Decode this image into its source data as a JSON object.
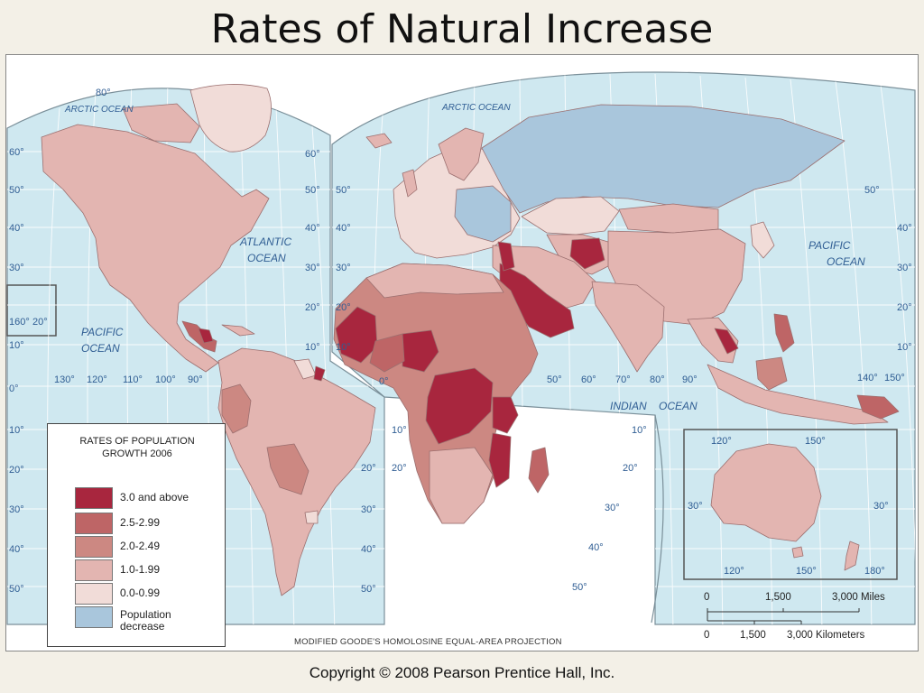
{
  "slide": {
    "title": "Rates of Natural Increase",
    "copyright": "Copyright © 2008 Pearson Prentice Hall, Inc."
  },
  "colors": {
    "ocean": "#cfe8f0",
    "class_3_0_above": "#a8263e",
    "class_2_5_2_99": "#be6566",
    "class_2_0_2_49": "#cc8882",
    "class_1_0_1_99": "#e3b5b1",
    "class_0_0_0_99": "#f1dcd8",
    "population_decrease": "#a9c6dc"
  },
  "oceans": {
    "arctic_left": "ARCTIC OCEAN",
    "arctic_right": "ARCTIC OCEAN",
    "atlantic": "ATLANTIC\nOCEAN",
    "pacific_left": "PACIFIC\nOCEAN",
    "pacific_right": "PACIFIC\nOCEAN",
    "indian": "INDIAN    OCEAN"
  },
  "grid_labels": {
    "lat_left": [
      "80°",
      "60°",
      "50°",
      "40°",
      "30°",
      "20°",
      "10°",
      "0°",
      "10°",
      "20°",
      "30°",
      "40°",
      "50°"
    ],
    "lat_mid": [
      "60°",
      "50°",
      "40°",
      "30°",
      "20°",
      "10°"
    ],
    "lat_mid_right": [
      "50°",
      "40°",
      "30°",
      "20°",
      "10°",
      "20°",
      "30°",
      "40°",
      "50°"
    ],
    "lat_right": [
      "50°",
      "40°",
      "30°",
      "20°",
      "10°"
    ],
    "lon_americas": [
      "130°",
      "120°",
      "110°",
      "100°",
      "90°"
    ],
    "lon_africa_asia": [
      "0°",
      "50°",
      "60°",
      "70°",
      "80°",
      "90°",
      "140°",
      "150°"
    ],
    "lon_160": "160°",
    "indian_lat": [
      "10°",
      "20°",
      "30°",
      "40°",
      "50°"
    ],
    "australia_inset": [
      "120°",
      "150°",
      "30°",
      "30°",
      "120°",
      "150°",
      "180°"
    ]
  },
  "legend": {
    "title": "RATES OF POPULATION\nGROWTH 2006",
    "items": [
      {
        "label": "3.0 and above",
        "color": "#a8263e"
      },
      {
        "label": "2.5-2.99",
        "color": "#be6566"
      },
      {
        "label": "2.0-2.49",
        "color": "#cc8882"
      },
      {
        "label": "1.0-1.99",
        "color": "#e3b5b1"
      },
      {
        "label": "0.0-0.99",
        "color": "#f1dcd8"
      },
      {
        "label": "Population\ndecrease",
        "color": "#a9c6dc"
      }
    ]
  },
  "projection": "MODIFIED GOODE'S HOMOLOSINE EQUAL-AREA PROJECTION",
  "scale": {
    "miles": [
      "0",
      "1,500",
      "3,000 Miles"
    ],
    "km": [
      "0",
      "1,500",
      "3,000 Kilometers"
    ]
  }
}
